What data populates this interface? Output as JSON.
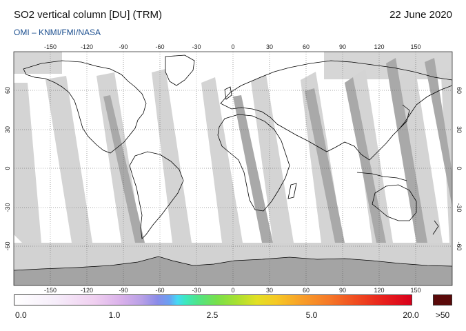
{
  "header": {
    "title": "SO2 vertical column [DU] (TRM)",
    "date": "22 June 2020",
    "credit": "OMI  –  KNMI/FMI/NASA"
  },
  "map": {
    "projection": "equirectangular",
    "lon_range": [
      -180,
      180
    ],
    "lat_range": [
      -90,
      90
    ],
    "lon_ticks_top": [
      "-150",
      "-120",
      "-90",
      "-60",
      "-30",
      "0",
      "30",
      "60",
      "90",
      "120",
      "150"
    ],
    "lon_ticks_bottom": [
      "-150",
      "-120",
      "-90",
      "-60",
      "-30",
      "0",
      "30",
      "60",
      "90",
      "120",
      "150"
    ],
    "lat_ticks_left": [
      "60",
      "30",
      "0",
      "-30",
      "-60"
    ],
    "lat_ticks_right": [
      "60",
      "30",
      "0",
      "-30",
      "-60"
    ],
    "gridlines": true,
    "colors": {
      "no_data": "#d4d4d4",
      "swath_edge": "#a8a8a8",
      "land_no_data": "#a0a0a0",
      "coastline": "#000000"
    }
  },
  "colorbar": {
    "labels": [
      "0.0",
      "1.0",
      "2.5",
      "5.0",
      "20.0"
    ],
    "overflow_label": ">50",
    "overflow_color": "#5a0a0a"
  }
}
